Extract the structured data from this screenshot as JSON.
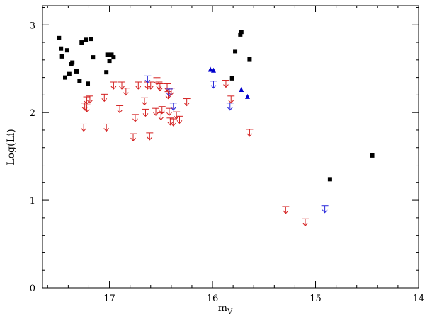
{
  "chart_data": {
    "type": "scatter",
    "title": "",
    "xlabel_main": "m",
    "xlabel_sub": "V",
    "ylabel": "Log(Li)",
    "xlim": [
      17.65,
      14.0
    ],
    "ylim": [
      0,
      3.22
    ],
    "x_ticks": [
      {
        "value": 17,
        "label": "17"
      },
      {
        "value": 16,
        "label": "16"
      },
      {
        "value": 15,
        "label": "15"
      },
      {
        "value": 14,
        "label": "14"
      }
    ],
    "y_ticks": [
      {
        "value": 0,
        "label": "0"
      },
      {
        "value": 1,
        "label": "1"
      },
      {
        "value": 2,
        "label": "2"
      },
      {
        "value": 3,
        "label": "3"
      }
    ],
    "x_minor_step": 0.2,
    "y_minor_step": 0.2,
    "grid": false,
    "series": [
      {
        "marker": "square",
        "color": "#000000",
        "points": [
          [
            17.49,
            2.85
          ],
          [
            17.47,
            2.73
          ],
          [
            17.46,
            2.64
          ],
          [
            17.43,
            2.4
          ],
          [
            17.41,
            2.71
          ],
          [
            17.39,
            2.44
          ],
          [
            17.37,
            2.55
          ],
          [
            17.36,
            2.57
          ],
          [
            17.32,
            2.47
          ],
          [
            17.29,
            2.36
          ],
          [
            17.27,
            2.8
          ],
          [
            17.23,
            2.83
          ],
          [
            17.21,
            2.33
          ],
          [
            17.18,
            2.84
          ],
          [
            17.16,
            2.63
          ],
          [
            17.03,
            2.46
          ],
          [
            17.02,
            2.66
          ],
          [
            17.0,
            2.59
          ],
          [
            16.98,
            2.66
          ],
          [
            16.96,
            2.63
          ],
          [
            15.81,
            2.39
          ],
          [
            15.78,
            2.7
          ],
          [
            15.73,
            2.89
          ],
          [
            15.72,
            2.92
          ],
          [
            15.64,
            2.61
          ],
          [
            14.86,
            1.24
          ],
          [
            14.45,
            1.51
          ]
        ]
      },
      {
        "marker": "triangle",
        "color": "#0000cc",
        "points": [
          [
            16.02,
            2.49
          ],
          [
            15.99,
            2.48
          ],
          [
            15.72,
            2.26
          ],
          [
            15.66,
            2.18
          ]
        ]
      },
      {
        "marker": "upper-limit",
        "color": "#d42020",
        "points": [
          [
            17.25,
            1.82
          ],
          [
            17.24,
            2.06
          ],
          [
            17.22,
            2.04
          ],
          [
            17.22,
            2.13
          ],
          [
            17.19,
            2.14
          ],
          [
            17.05,
            2.16
          ],
          [
            17.03,
            1.82
          ],
          [
            16.96,
            2.3
          ],
          [
            16.9,
            2.03
          ],
          [
            16.88,
            2.3
          ],
          [
            16.84,
            2.23
          ],
          [
            16.77,
            1.71
          ],
          [
            16.75,
            1.93
          ],
          [
            16.72,
            2.3
          ],
          [
            16.66,
            2.12
          ],
          [
            16.65,
            1.99
          ],
          [
            16.63,
            2.3
          ],
          [
            16.61,
            1.72
          ],
          [
            16.6,
            2.3
          ],
          [
            16.55,
            2.0
          ],
          [
            16.54,
            2.35
          ],
          [
            16.52,
            2.3
          ],
          [
            16.51,
            2.28
          ],
          [
            16.5,
            1.95
          ],
          [
            16.49,
            2.02
          ],
          [
            16.44,
            2.28
          ],
          [
            16.43,
            2.19
          ],
          [
            16.42,
            2.0
          ],
          [
            16.41,
            1.89
          ],
          [
            16.4,
            2.23
          ],
          [
            16.38,
            1.88
          ],
          [
            16.35,
            1.96
          ],
          [
            16.32,
            1.91
          ],
          [
            16.25,
            2.11
          ],
          [
            15.87,
            2.32
          ],
          [
            15.82,
            2.14
          ],
          [
            15.64,
            1.76
          ],
          [
            15.29,
            0.88
          ],
          [
            15.1,
            0.74
          ]
        ]
      },
      {
        "marker": "upper-limit",
        "color": "#2a2adb",
        "points": [
          [
            16.63,
            2.37
          ],
          [
            16.42,
            2.22
          ],
          [
            16.38,
            2.06
          ],
          [
            15.99,
            2.31
          ],
          [
            15.83,
            2.06
          ],
          [
            14.91,
            0.89
          ]
        ]
      }
    ]
  }
}
